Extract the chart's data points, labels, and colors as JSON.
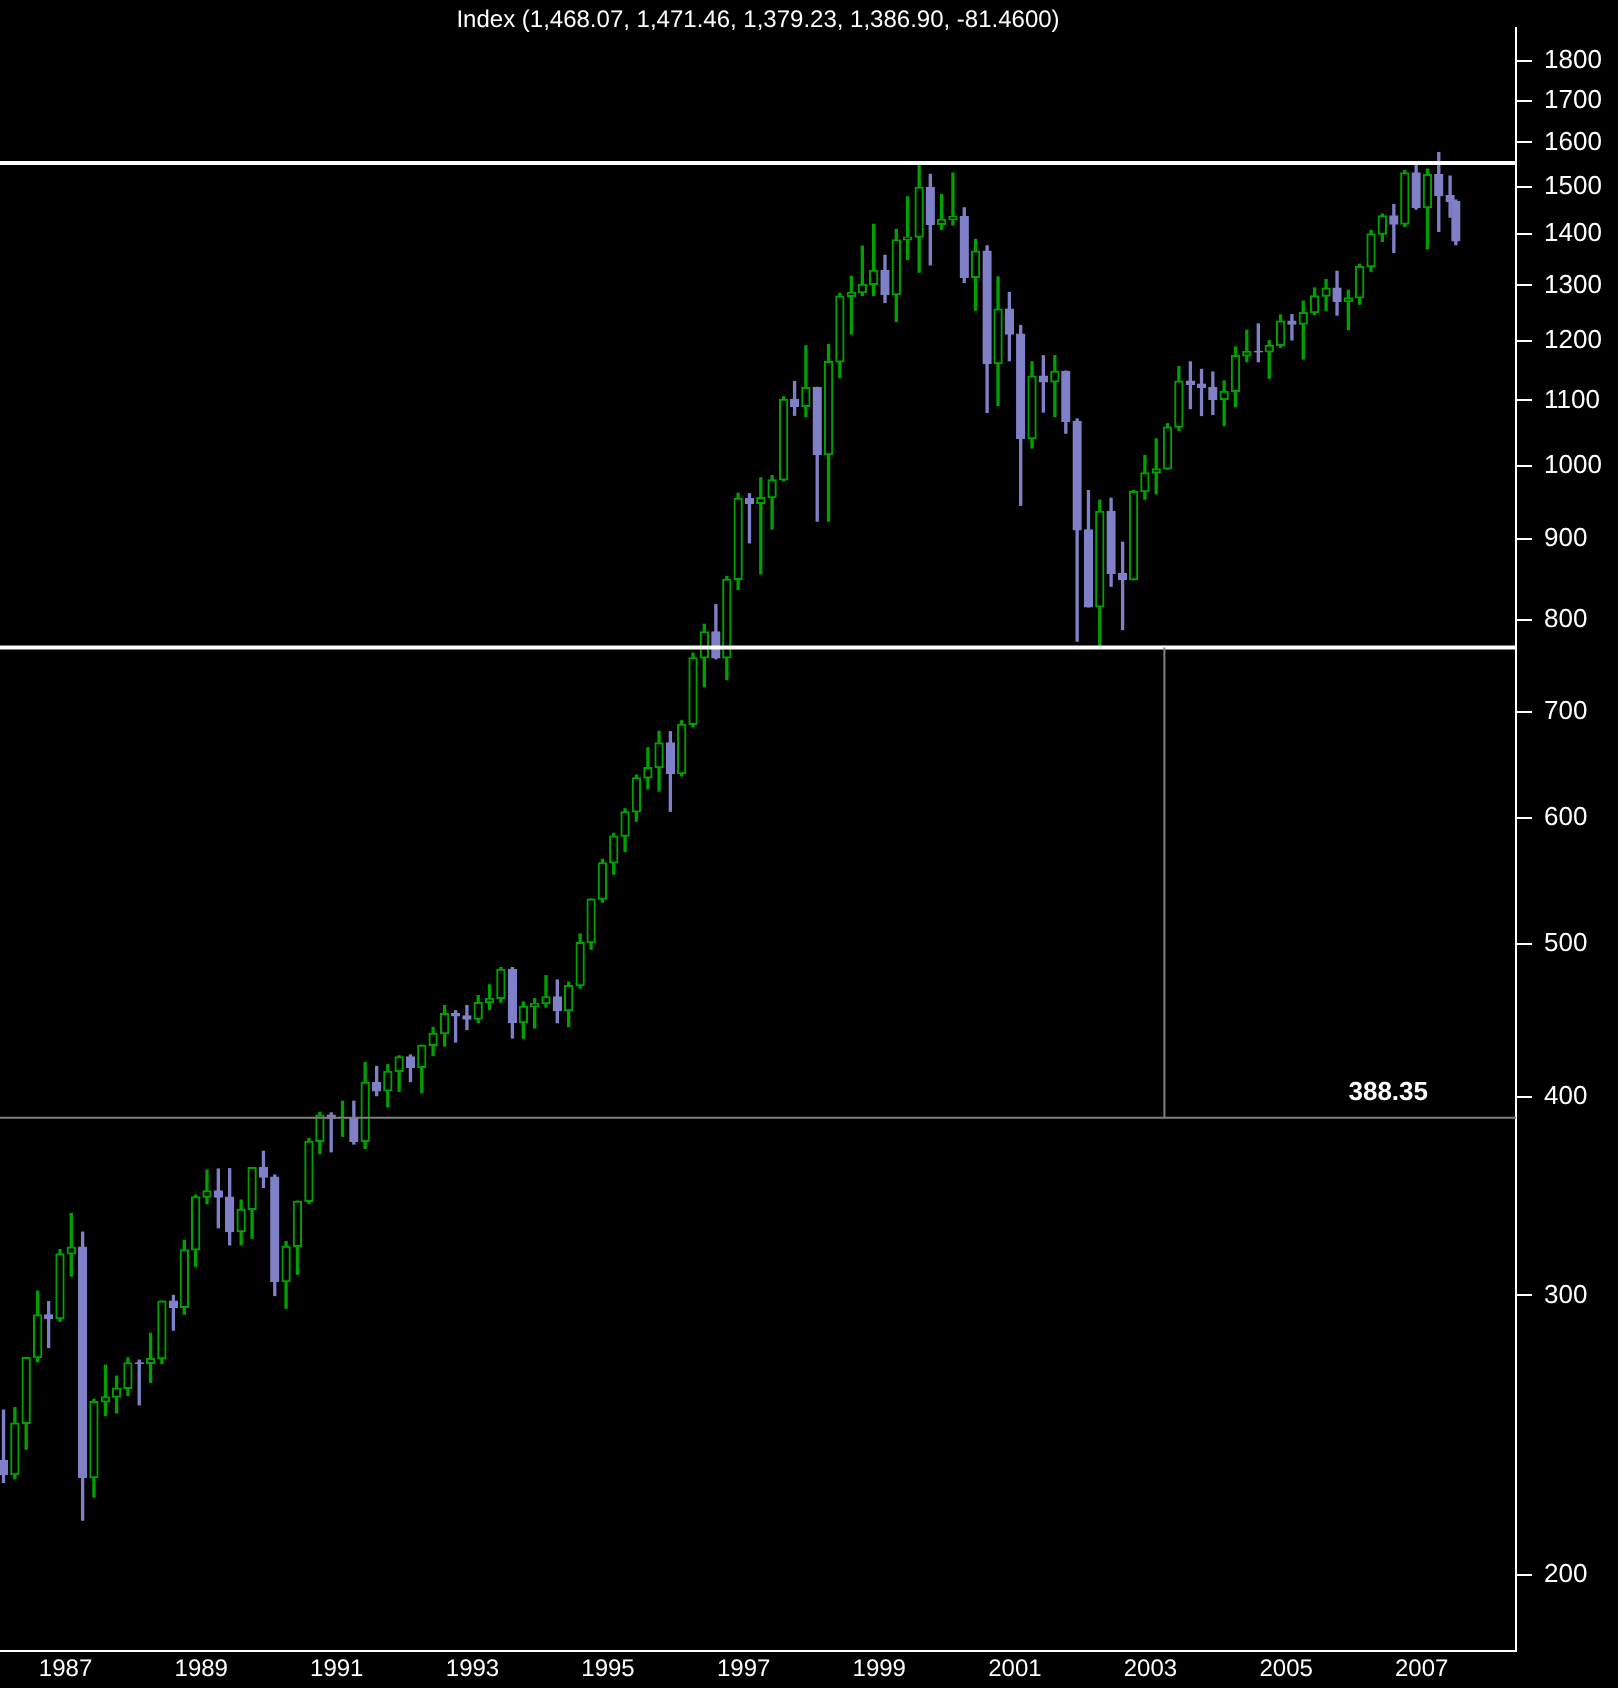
{
  "chart_data": {
    "type": "candlestick",
    "title": "Index (1,468.07, 1,471.46, 1,379.23, 1,386.90, -81.4600)",
    "log": "y",
    "grid": false,
    "legend": false,
    "xlim": [
      "1986-07-13",
      "2008-11-20"
    ],
    "xticks": [
      {
        "value": "1987-07-01",
        "label": "1987"
      },
      {
        "value": "1989-07-01",
        "label": "1989"
      },
      {
        "value": "1991-07-01",
        "label": "1991"
      },
      {
        "value": "1993-07-01",
        "label": "1993"
      },
      {
        "value": "1995-07-01",
        "label": "1995"
      },
      {
        "value": "1997-07-01",
        "label": "1997"
      },
      {
        "value": "1999-07-01",
        "label": "1999"
      },
      {
        "value": "2001-07-01",
        "label": "2001"
      },
      {
        "value": "2003-07-01",
        "label": "2003"
      },
      {
        "value": "2005-07-01",
        "label": "2005"
      },
      {
        "value": "2007-07-01",
        "label": "2007"
      }
    ],
    "ylim": [
      179,
      1890
    ],
    "yticks": [
      200,
      300,
      400,
      500,
      600,
      700,
      800,
      900,
      1000,
      1100,
      1200,
      1300,
      1400,
      1500,
      1600,
      1700,
      1800
    ],
    "ref_lines": [
      {
        "axis": "y",
        "value": 1552.87,
        "color": "#ffffff"
      },
      {
        "axis": "y",
        "value": 768.63,
        "color": "#ffffff"
      },
      {
        "axis": "y",
        "value": 388.35,
        "label": "388.35",
        "color": "#808080"
      },
      {
        "axis": "x",
        "value": "2003-09-14",
        "color": "#808080"
      }
    ],
    "series": [
      {
        "color": "#00a000",
        "x": [
          "1986-10",
          "1986-12",
          "1987-02",
          "1987-06",
          "1987-08",
          "1987-12",
          "1988-02",
          "1988-04",
          "1988-06",
          "1988-10",
          "1988-12",
          "1989-04",
          "1989-06",
          "1989-08",
          "1990-02",
          "1990-04",
          "1990-10",
          "1990-12",
          "1991-02",
          "1991-04",
          "1991-08",
          "1991-12",
          "1992-04",
          "1992-06",
          "1992-10",
          "1992-12",
          "1993-02",
          "1993-08",
          "1993-10",
          "1993-12",
          "1994-04",
          "1994-06",
          "1994-08",
          "1994-12",
          "1995-02",
          "1995-04",
          "1995-06",
          "1995-08",
          "1995-10",
          "1995-12",
          "1996-02",
          "1996-04",
          "1996-08",
          "1996-10",
          "1996-12",
          "1997-04",
          "1997-06",
          "1997-10",
          "1997-12",
          "1998-02",
          "1998-06",
          "1998-10",
          "1998-12",
          "1999-02",
          "1999-04",
          "1999-06",
          "1999-10",
          "1999-12",
          "2000-02",
          "2000-06",
          "2000-08",
          "2000-12",
          "2001-04",
          "2001-10",
          "2002-02",
          "2002-10",
          "2003-04",
          "2003-06",
          "2003-08",
          "2003-10",
          "2003-12",
          "2004-08",
          "2004-10",
          "2004-12",
          "2005-04",
          "2005-06",
          "2005-10",
          "2005-12",
          "2006-02",
          "2006-06",
          "2006-08",
          "2006-10",
          "2006-12",
          "2007-04",
          "2007-08"
        ],
        "ohlc": [
          [
            231.3,
            254.9,
            229.9,
            249.2
          ],
          [
            249.2,
            274.2,
            240.0,
            274.1
          ],
          [
            274.1,
            301.9,
            272.5,
            291.7
          ],
          [
            290.1,
            320.6,
            289.0,
            318.7
          ],
          [
            318.7,
            337.9,
            308.6,
            321.8
          ],
          [
            230.3,
            258.0,
            223.9,
            257.1
          ],
          [
            257.1,
            271.1,
            252.0,
            258.9
          ],
          [
            258.9,
            266.8,
            253.0,
            262.2
          ],
          [
            262.2,
            274.0,
            259.5,
            272.0
          ],
          [
            271.9,
            283.9,
            264.5,
            273.7
          ],
          [
            273.7,
            297.5,
            271.8,
            297.5
          ],
          [
            294.9,
            325.0,
            292.0,
            320.5
          ],
          [
            320.5,
            347.0,
            313.0,
            346.1
          ],
          [
            346.1,
            359.8,
            342.8,
            349.2
          ],
          [
            329.1,
            344.5,
            322.9,
            339.9
          ],
          [
            339.9,
            361.2,
            326.0,
            361.2
          ],
          [
            306.1,
            324.4,
            294.5,
            322.2
          ],
          [
            322.2,
            344.0,
            309.4,
            343.9
          ],
          [
            343.9,
            376.7,
            343.0,
            375.2
          ],
          [
            375.2,
            391.3,
            368.6,
            389.8
          ],
          [
            387.8,
            397.7,
            378.0,
            387.9
          ],
          [
            375.2,
            420.8,
            371.4,
            408.8
          ],
          [
            403.7,
            419.4,
            394.5,
            415.35
          ],
          [
            415.35,
            424.8,
            403.5,
            424.2
          ],
          [
            417.8,
            431.4,
            402.7,
            431.35
          ],
          [
            431.35,
            442.6,
            425.0,
            438.8
          ],
          [
            438.8,
            456.9,
            431.0,
            451.7
          ],
          [
            448.1,
            463.6,
            446.0,
            458.9
          ],
          [
            458.9,
            470.9,
            454.4,
            461.8
          ],
          [
            461.8,
            482.9,
            459.3,
            481.6
          ],
          [
            445.8,
            459.3,
            435.9,
            456.5
          ],
          [
            456.5,
            461.5,
            442.4,
            458.3
          ],
          [
            458.3,
            477.2,
            456.0,
            462.7
          ],
          [
            453.7,
            472.8,
            443.3,
            470.4
          ],
          [
            470.4,
            507.0,
            468.8,
            500.7
          ],
          [
            500.7,
            533.4,
            496.0,
            533.4
          ],
          [
            533.4,
            565.0,
            531.0,
            562.1
          ],
          [
            562.1,
            586.7,
            553.0,
            584.4
          ],
          [
            584.4,
            608.0,
            571.5,
            605.4
          ],
          [
            605.4,
            638.5,
            597.3,
            636.0
          ],
          [
            636.0,
            664.2,
            626.0,
            645.5
          ],
          [
            645.5,
            680.3,
            624.0,
            669.1
          ],
          [
            640.0,
            690.9,
            638.0,
            687.3
          ],
          [
            687.3,
            762.1,
            685.0,
            757.0
          ],
          [
            757.0,
            794.7,
            726.0,
            786.2
          ],
          [
            757.1,
            851.9,
            733.5,
            848.3
          ],
          [
            848.3,
            961.2,
            836.0,
            954.3
          ],
          [
            947.3,
            983.1,
            855.3,
            955.4
          ],
          [
            955.4,
            986.3,
            912.8,
            980.3
          ],
          [
            980.3,
            1105.7,
            979.0,
            1101.75
          ],
          [
            1090.8,
            1190.6,
            1074.6,
            1120.7
          ],
          [
            1017.0,
            1193.0,
            923.3,
            1163.6
          ],
          [
            1163.6,
            1285.0,
            1136.9,
            1279.6
          ],
          [
            1279.6,
            1317.2,
            1211.7,
            1286.4
          ],
          [
            1286.4,
            1376.0,
            1281.2,
            1301.8
          ],
          [
            1301.8,
            1420.3,
            1281.4,
            1328.7
          ],
          [
            1282.7,
            1410.0,
            1233.7,
            1388.9
          ],
          [
            1388.9,
            1478.0,
            1350.1,
            1394.5
          ],
          [
            1394.5,
            1552.9,
            1325.1,
            1498.6
          ],
          [
            1420.6,
            1483.0,
            1410.0,
            1430.8
          ],
          [
            1430.8,
            1530.1,
            1419.4,
            1436.5
          ],
          [
            1315.2,
            1389.7,
            1254.1,
            1366.0
          ],
          [
            1160.3,
            1315.9,
            1092.0,
            1255.8
          ],
          [
            1040.9,
            1163.4,
            1026.8,
            1139.5
          ],
          [
            1130.2,
            1173.9,
            1074.4,
            1147.4
          ],
          [
            815.3,
            951.6,
            768.6,
            936.3
          ],
          [
            848.2,
            965.4,
            847.9,
            963.6
          ],
          [
            963.6,
            1015.4,
            953.1,
            990.3
          ],
          [
            990.3,
            1040.3,
            960.8,
            996.0
          ],
          [
            996.0,
            1063.4,
            995.6,
            1058.2
          ],
          [
            1058.2,
            1155.4,
            1053.4,
            1131.1
          ],
          [
            1101.7,
            1131.5,
            1060.7,
            1114.6
          ],
          [
            1114.6,
            1188.5,
            1090.2,
            1173.8
          ],
          [
            1173.8,
            1217.9,
            1163.8,
            1181.3
          ],
          [
            1180.6,
            1199.6,
            1136.2,
            1191.5
          ],
          [
            1191.5,
            1245.2,
            1188.3,
            1234.2
          ],
          [
            1228.8,
            1270.6,
            1168.2,
            1249.5
          ],
          [
            1249.5,
            1294.9,
            1246.1,
            1280.1
          ],
          [
            1280.1,
            1310.9,
            1253.8,
            1294.8
          ],
          [
            1270.1,
            1290.7,
            1219.3,
            1276.7
          ],
          [
            1276.7,
            1340.3,
            1265.0,
            1335.85
          ],
          [
            1335.85,
            1407.9,
            1327.1,
            1400.6
          ],
          [
            1400.6,
            1441.6,
            1385.9,
            1438.2
          ],
          [
            1420.9,
            1535.6,
            1416.4,
            1530.6
          ],
          [
            1455.3,
            1538.7,
            1370.6,
            1526.75
          ]
        ]
      },
      {
        "color": "#8080c8",
        "x": [
          "1986-08",
          "1987-04",
          "1987-10",
          "1988-08",
          "1989-02",
          "1989-10",
          "1989-12",
          "1990-06",
          "1990-08",
          "1991-06",
          "1991-10",
          "1992-02",
          "1992-08",
          "1993-04",
          "1993-06",
          "1994-02",
          "1994-10",
          "1996-06",
          "1997-02",
          "1997-08",
          "1998-04",
          "1998-08",
          "1999-08",
          "2000-04",
          "2000-10",
          "2001-02",
          "2001-06",
          "2001-08",
          "2001-12",
          "2002-04",
          "2002-06",
          "2002-08",
          "2002-12",
          "2003-02",
          "2004-02",
          "2004-04",
          "2004-06",
          "2005-02",
          "2005-08",
          "2006-04",
          "2007-02",
          "2007-06",
          "2007-10",
          "2007-12",
          "2008-01"
        ],
        "ohlc": [
          [
            236.1,
            254.0,
            228.7,
            231.3
          ],
          [
            291.7,
            297.3,
            278.2,
            290.1
          ],
          [
            321.8,
            328.9,
            216.5,
            230.3
          ],
          [
            272.0,
            273.1,
            256.0,
            271.9
          ],
          [
            297.5,
            300.0,
            285.3,
            294.9
          ],
          [
            349.2,
            360.4,
            331.0,
            346.0
          ],
          [
            346.0,
            360.6,
            322.9,
            329.1
          ],
          [
            361.2,
            369.8,
            351.0,
            356.2
          ],
          [
            356.2,
            357.3,
            300.0,
            306.1
          ],
          [
            389.8,
            391.0,
            369.6,
            387.8
          ],
          [
            387.9,
            397.7,
            373.8,
            375.2
          ],
          [
            408.8,
            418.3,
            401.0,
            403.7
          ],
          [
            424.2,
            425.3,
            409.3,
            417.8
          ],
          [
            451.7,
            453.5,
            433.5,
            450.2
          ],
          [
            450.2,
            456.9,
            441.4,
            448.1
          ],
          [
            481.6,
            482.8,
            436.0,
            445.8
          ],
          [
            462.7,
            474.2,
            445.8,
            453.7
          ],
          [
            669.1,
            680.0,
            605.9,
            640.0
          ],
          [
            786.2,
            817.7,
            756.0,
            757.1
          ],
          [
            954.3,
            960.6,
            894.6,
            947.3
          ],
          [
            1101.75,
            1130.5,
            1076.7,
            1090.8
          ],
          [
            1120.7,
            1121.0,
            923.3,
            1017.0
          ],
          [
            1328.7,
            1357.7,
            1268.4,
            1282.7
          ],
          [
            1498.6,
            1527.2,
            1339.4,
            1420.6
          ],
          [
            1436.5,
            1454.8,
            1305.8,
            1315.2
          ],
          [
            1366.0,
            1376.5,
            1081.2,
            1160.3
          ],
          [
            1255.8,
            1286.6,
            1165.5,
            1211.2
          ],
          [
            1211.2,
            1226.3,
            944.8,
            1040.9
          ],
          [
            1139.5,
            1173.6,
            1081.7,
            1130.2
          ],
          [
            1147.4,
            1147.8,
            1049.0,
            1067.1
          ],
          [
            1067.1,
            1070.7,
            775.7,
            911.6
          ],
          [
            911.6,
            965.0,
            815.3,
            815.3
          ],
          [
            936.3,
            954.3,
            840.0,
            855.7
          ],
          [
            855.7,
            895.3,
            788.9,
            848.2
          ],
          [
            1131.1,
            1163.2,
            1087.2,
            1126.2
          ],
          [
            1126.2,
            1150.6,
            1076.3,
            1120.7
          ],
          [
            1120.7,
            1146.2,
            1078.0,
            1101.7
          ],
          [
            1181.3,
            1229.1,
            1163.7,
            1180.6
          ],
          [
            1234.2,
            1245.9,
            1201.1,
            1228.8
          ],
          [
            1294.8,
            1326.7,
            1245.3,
            1270.1
          ],
          [
            1438.2,
            1461.6,
            1364.0,
            1420.9
          ],
          [
            1530.6,
            1555.9,
            1452.2,
            1455.3
          ],
          [
            1526.75,
            1576.1,
            1406.1,
            1481.1
          ],
          [
            1481.1,
            1523.6,
            1435.7,
            1468.4
          ],
          [
            1468.07,
            1471.46,
            1379.23,
            1386.9
          ]
        ]
      }
    ]
  }
}
